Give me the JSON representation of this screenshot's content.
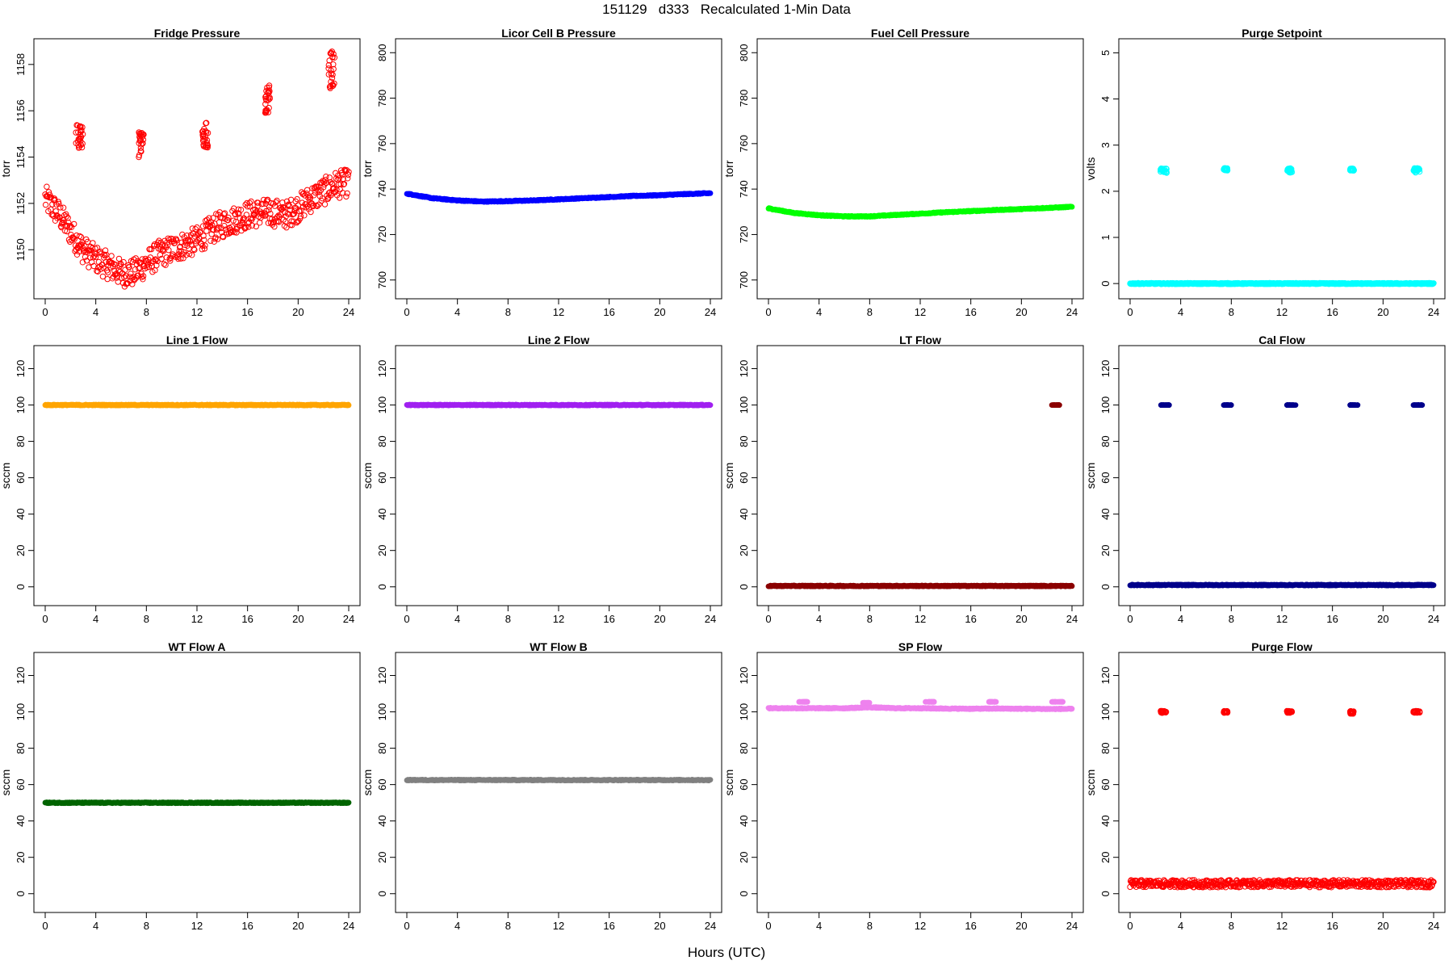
{
  "title": "151129   d333   Recalculated 1-Min Data",
  "xlabel": "Hours (UTC)",
  "chart_data": [
    {
      "type": "scatter",
      "title": "Fridge Pressure",
      "ylabel": "torr",
      "xlim": [
        0,
        24
      ],
      "ylim": [
        1148.3,
        1158.9
      ],
      "xticks": [
        0,
        4,
        8,
        12,
        16,
        20,
        24
      ],
      "yticks": [
        1150,
        1152,
        1154,
        1156,
        1158
      ],
      "marker": "open",
      "color": "#ff0000",
      "series": [
        {
          "x": [
            0,
            1,
            2,
            3,
            4,
            5,
            6,
            7,
            8,
            9,
            10,
            11,
            12,
            13,
            14,
            15,
            16,
            17,
            18,
            19,
            20,
            21,
            22,
            23,
            24
          ],
          "y": [
            1152.2,
            1151.6,
            1150.8,
            1150.0,
            1149.6,
            1149.3,
            1149.0,
            1149.0,
            1149.4,
            1149.8,
            1150.0,
            1150.2,
            1150.4,
            1150.8,
            1151.1,
            1151.3,
            1151.5,
            1151.6,
            1151.6,
            1151.5,
            1151.8,
            1152.2,
            1152.5,
            1152.8,
            1152.9
          ]
        }
      ],
      "clusters": [
        {
          "x": [
            2.4,
            3.0
          ],
          "y": [
            1154.3,
            1155.4
          ]
        },
        {
          "x": [
            7.4,
            7.8
          ],
          "y": [
            1154.0,
            1155.1
          ]
        },
        {
          "x": [
            12.4,
            12.9
          ],
          "y": [
            1154.4,
            1155.6
          ]
        },
        {
          "x": [
            17.4,
            17.8
          ],
          "y": [
            1155.9,
            1157.2
          ]
        },
        {
          "x": [
            22.4,
            22.9
          ],
          "y": [
            1156.7,
            1158.6
          ]
        }
      ]
    },
    {
      "type": "scatter",
      "title": "Licor Cell B Pressure",
      "ylabel": "torr",
      "xlim": [
        0,
        24
      ],
      "ylim": [
        696,
        804
      ],
      "xticks": [
        0,
        4,
        8,
        12,
        16,
        20,
        24
      ],
      "yticks": [
        700,
        720,
        740,
        760,
        780,
        800
      ],
      "marker": "filled",
      "color": "#0000ff",
      "series": [
        {
          "x": [
            0,
            2,
            4,
            6,
            8,
            10,
            12,
            14,
            16,
            18,
            20,
            22,
            24
          ],
          "y": [
            738,
            736,
            735,
            734.5,
            734.7,
            735,
            735.5,
            736,
            736.5,
            737,
            737.3,
            737.8,
            738.2
          ]
        }
      ]
    },
    {
      "type": "scatter",
      "title": "Fuel Cell Pressure",
      "ylabel": "torr",
      "xlim": [
        0,
        24
      ],
      "ylim": [
        696,
        804
      ],
      "xticks": [
        0,
        4,
        8,
        12,
        16,
        20,
        24
      ],
      "yticks": [
        700,
        720,
        740,
        760,
        780,
        800
      ],
      "marker": "filled",
      "color": "#00ff00",
      "series": [
        {
          "x": [
            0,
            2,
            4,
            6,
            8,
            10,
            12,
            14,
            16,
            18,
            20,
            22,
            24
          ],
          "y": [
            731.5,
            729.5,
            728.5,
            728,
            728,
            728.6,
            729.2,
            729.8,
            730.3,
            730.8,
            731.2,
            731.7,
            732.2
          ]
        }
      ]
    },
    {
      "type": "scatter",
      "title": "Purge Setpoint",
      "ylabel": "volts",
      "xlim": [
        0,
        24
      ],
      "ylim": [
        -0.12,
        5.2
      ],
      "xticks": [
        0,
        4,
        8,
        12,
        16,
        20,
        24
      ],
      "yticks": [
        0,
        1,
        2,
        3,
        4,
        5
      ],
      "marker": "open",
      "color": "#00ffff",
      "series": [
        {
          "x": [
            0,
            24
          ],
          "y": [
            0,
            0
          ]
        }
      ],
      "clusters": [
        {
          "x": [
            2.4,
            2.9
          ],
          "y": [
            2.4,
            2.5
          ]
        },
        {
          "x": [
            7.4,
            7.7
          ],
          "y": [
            2.45,
            2.5
          ]
        },
        {
          "x": [
            12.4,
            12.8
          ],
          "y": [
            2.4,
            2.5
          ]
        },
        {
          "x": [
            17.4,
            17.7
          ],
          "y": [
            2.45,
            2.5
          ]
        },
        {
          "x": [
            22.4,
            22.9
          ],
          "y": [
            2.4,
            2.5
          ]
        }
      ]
    },
    {
      "type": "scatter",
      "title": "Line 1 Flow",
      "ylabel": "sccm",
      "xlim": [
        0,
        24
      ],
      "ylim": [
        -5,
        130
      ],
      "xticks": [
        0,
        4,
        8,
        12,
        16,
        20,
        24
      ],
      "yticks": [
        0,
        20,
        40,
        60,
        80,
        100,
        120
      ],
      "marker": "filled",
      "color": "#ffa500",
      "series": [
        {
          "x": [
            0,
            24
          ],
          "y": [
            100,
            100
          ]
        }
      ]
    },
    {
      "type": "scatter",
      "title": "Line 2 Flow",
      "ylabel": "sccm",
      "xlim": [
        0,
        24
      ],
      "ylim": [
        -5,
        130
      ],
      "xticks": [
        0,
        4,
        8,
        12,
        16,
        20,
        24
      ],
      "yticks": [
        0,
        20,
        40,
        60,
        80,
        100,
        120
      ],
      "marker": "filled",
      "color": "#a020f0",
      "series": [
        {
          "x": [
            0,
            24
          ],
          "y": [
            100,
            100
          ]
        }
      ]
    },
    {
      "type": "scatter",
      "title": "LT Flow",
      "ylabel": "sccm",
      "xlim": [
        0,
        24
      ],
      "ylim": [
        -5,
        130
      ],
      "xticks": [
        0,
        4,
        8,
        12,
        16,
        20,
        24
      ],
      "yticks": [
        0,
        20,
        40,
        60,
        80,
        100,
        120
      ],
      "marker": "filled",
      "color": "#8b0000",
      "series": [
        {
          "x": [
            0,
            24
          ],
          "y": [
            0.5,
            0.5
          ]
        }
      ],
      "clusters": [
        {
          "x": [
            22.4,
            23.0
          ],
          "y": [
            100,
            100
          ]
        }
      ]
    },
    {
      "type": "scatter",
      "title": "Cal Flow",
      "ylabel": "sccm",
      "xlim": [
        0,
        24
      ],
      "ylim": [
        -5,
        130
      ],
      "xticks": [
        0,
        4,
        8,
        12,
        16,
        20,
        24
      ],
      "yticks": [
        0,
        20,
        40,
        60,
        80,
        100,
        120
      ],
      "marker": "filled",
      "color": "#00008b",
      "series": [
        {
          "x": [
            0,
            24
          ],
          "y": [
            1,
            1
          ]
        }
      ],
      "clusters": [
        {
          "x": [
            2.4,
            3.1
          ],
          "y": [
            100,
            100
          ]
        },
        {
          "x": [
            7.4,
            8.0
          ],
          "y": [
            100,
            100
          ]
        },
        {
          "x": [
            12.4,
            13.1
          ],
          "y": [
            100,
            100
          ]
        },
        {
          "x": [
            17.4,
            18.0
          ],
          "y": [
            100,
            100
          ]
        },
        {
          "x": [
            22.4,
            23.1
          ],
          "y": [
            100,
            100
          ]
        }
      ]
    },
    {
      "type": "scatter",
      "title": "WT Flow A",
      "ylabel": "sccm",
      "xlim": [
        0,
        24
      ],
      "ylim": [
        -5,
        130
      ],
      "xticks": [
        0,
        4,
        8,
        12,
        16,
        20,
        24
      ],
      "yticks": [
        0,
        20,
        40,
        60,
        80,
        100,
        120
      ],
      "marker": "filled",
      "color": "#006400",
      "series": [
        {
          "x": [
            0,
            24
          ],
          "y": [
            50,
            50
          ]
        }
      ]
    },
    {
      "type": "scatter",
      "title": "WT Flow B",
      "ylabel": "sccm",
      "xlim": [
        0,
        24
      ],
      "ylim": [
        -5,
        130
      ],
      "xticks": [
        0,
        4,
        8,
        12,
        16,
        20,
        24
      ],
      "yticks": [
        0,
        20,
        40,
        60,
        80,
        100,
        120
      ],
      "marker": "filled",
      "color": "#808080",
      "series": [
        {
          "x": [
            0,
            24
          ],
          "y": [
            62.5,
            62.5
          ]
        }
      ]
    },
    {
      "type": "scatter",
      "title": "SP Flow",
      "ylabel": "sccm",
      "xlim": [
        0,
        24
      ],
      "ylim": [
        -5,
        130
      ],
      "xticks": [
        0,
        4,
        8,
        12,
        16,
        20,
        24
      ],
      "yticks": [
        0,
        20,
        40,
        60,
        80,
        100,
        120
      ],
      "marker": "filled",
      "color": "#ee82ee",
      "series": [
        {
          "x": [
            0,
            2,
            4,
            6,
            8,
            10,
            12,
            14,
            16,
            18,
            20,
            22,
            24
          ],
          "y": [
            102,
            102,
            102,
            102,
            102.5,
            102,
            102,
            101.8,
            101.7,
            101.8,
            101.7,
            101.6,
            101.6
          ]
        }
      ],
      "clusters": [
        {
          "x": [
            2.4,
            3.1
          ],
          "y": [
            105.5,
            105.5
          ]
        },
        {
          "x": [
            7.4,
            8.1
          ],
          "y": [
            105,
            105
          ]
        },
        {
          "x": [
            12.4,
            13.1
          ],
          "y": [
            105.5,
            105.5
          ]
        },
        {
          "x": [
            17.4,
            18.0
          ],
          "y": [
            105.5,
            105.5
          ]
        },
        {
          "x": [
            22.4,
            23.3
          ],
          "y": [
            105.5,
            105.5
          ]
        }
      ]
    },
    {
      "type": "scatter",
      "title": "Purge Flow",
      "ylabel": "sccm",
      "xlim": [
        0,
        24
      ],
      "ylim": [
        -5,
        130
      ],
      "xticks": [
        0,
        4,
        8,
        12,
        16,
        20,
        24
      ],
      "yticks": [
        0,
        20,
        40,
        60,
        80,
        100,
        120
      ],
      "marker": "open",
      "color": "#ff0000",
      "series": [
        {
          "x": [
            0,
            24
          ],
          "y": [
            5.5,
            5.5
          ]
        }
      ],
      "clusters": [
        {
          "x": [
            2.4,
            2.9
          ],
          "y": [
            99.5,
            100.5
          ]
        },
        {
          "x": [
            7.4,
            7.7
          ],
          "y": [
            99.5,
            100.5
          ]
        },
        {
          "x": [
            12.4,
            12.8
          ],
          "y": [
            99.5,
            100.5
          ]
        },
        {
          "x": [
            17.4,
            17.7
          ],
          "y": [
            99,
            100.5
          ]
        },
        {
          "x": [
            22.4,
            22.9
          ],
          "y": [
            99.5,
            100.5
          ]
        }
      ]
    }
  ]
}
